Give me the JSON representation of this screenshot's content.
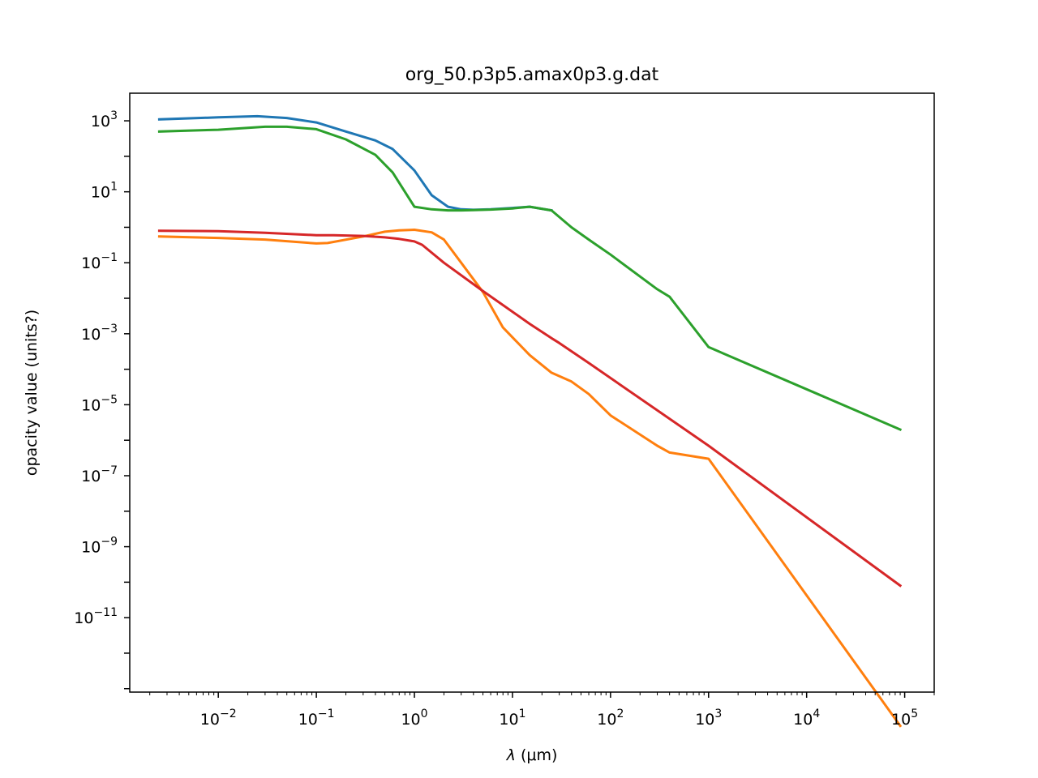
{
  "chart_data": {
    "type": "line",
    "title": "org_50.p3p5.amax0p3.g.dat",
    "xlabel_symbol": "λ",
    "xlabel_units": "(μm)",
    "ylabel": "opacity value (units?)",
    "xscale": "log",
    "yscale": "log",
    "xlim": [
      0.00125,
      200000
    ],
    "ylim": [
      8e-14,
      6000
    ],
    "grid": false,
    "legend": "none",
    "x_ticks": [
      {
        "value": 0.01,
        "base": "10",
        "exp": "−2"
      },
      {
        "value": 0.1,
        "base": "10",
        "exp": "−1"
      },
      {
        "value": 1,
        "base": "10",
        "exp": "0"
      },
      {
        "value": 10,
        "base": "10",
        "exp": "1"
      },
      {
        "value": 100,
        "base": "10",
        "exp": "2"
      },
      {
        "value": 1000,
        "base": "10",
        "exp": "3"
      },
      {
        "value": 10000,
        "base": "10",
        "exp": "4"
      },
      {
        "value": 100000,
        "base": "10",
        "exp": "5"
      }
    ],
    "y_ticks": [
      {
        "value": 1000.0,
        "base": "10",
        "exp": "3"
      },
      {
        "value": 10.0,
        "base": "10",
        "exp": "1"
      },
      {
        "value": 0.1,
        "base": "10",
        "exp": "−1"
      },
      {
        "value": 0.001,
        "base": "10",
        "exp": "−3"
      },
      {
        "value": 1e-05,
        "base": "10",
        "exp": "−5"
      },
      {
        "value": 1e-07,
        "base": "10",
        "exp": "−7"
      },
      {
        "value": 1e-09,
        "base": "10",
        "exp": "−9"
      },
      {
        "value": 1e-11,
        "base": "10",
        "exp": "−11"
      }
    ],
    "series": [
      {
        "color": "#1f77b4",
        "x": [
          0.0025,
          0.01,
          0.025,
          0.05,
          0.1,
          0.2,
          0.4,
          0.6,
          1.0,
          1.5,
          2.2,
          3,
          4,
          6,
          10,
          15,
          25
        ],
        "y": [
          1100,
          1250,
          1350,
          1200,
          900,
          500,
          280,
          160,
          40,
          8,
          3.8,
          3.2,
          3.1,
          3.2,
          3.5,
          3.8,
          3.0
        ]
      },
      {
        "color": "#ff7f0e",
        "x": [
          0.0025,
          0.01,
          0.03,
          0.1,
          0.13,
          0.3,
          0.5,
          0.7,
          1.0,
          1.5,
          2.0,
          3.0,
          5.0,
          8.0,
          15,
          25,
          40,
          60,
          100,
          300,
          400,
          1000,
          90000
        ],
        "y": [
          0.55,
          0.5,
          0.45,
          0.35,
          0.36,
          0.55,
          0.75,
          0.82,
          0.85,
          0.72,
          0.45,
          0.1,
          0.015,
          0.0015,
          0.00025,
          8e-05,
          4.5e-05,
          2e-05,
          5e-06,
          7e-07,
          4.5e-07,
          3e-07,
          9e-15
        ]
      },
      {
        "color": "#2ca02c",
        "x": [
          0.0025,
          0.01,
          0.03,
          0.05,
          0.1,
          0.2,
          0.4,
          0.6,
          1.0,
          1.5,
          2.2,
          3,
          4,
          6,
          10,
          15,
          25,
          40,
          60,
          100,
          300,
          400,
          1000,
          90000
        ],
        "y": [
          500,
          560,
          680,
          680,
          580,
          300,
          110,
          35,
          3.8,
          3.2,
          3.0,
          3.0,
          3.05,
          3.15,
          3.4,
          3.8,
          3.0,
          1.0,
          0.45,
          0.17,
          0.018,
          0.011,
          0.00042,
          2e-06
        ]
      },
      {
        "color": "#d62728",
        "x": [
          0.0025,
          0.01,
          0.03,
          0.1,
          0.15,
          0.3,
          0.5,
          0.7,
          1.0,
          1.2,
          2.0,
          5.0,
          15,
          25,
          30,
          60,
          1000,
          90000
        ],
        "y": [
          0.8,
          0.78,
          0.7,
          0.6,
          0.6,
          0.57,
          0.52,
          0.47,
          0.4,
          0.32,
          0.1,
          0.016,
          0.0019,
          0.00075,
          0.00055,
          0.00015,
          7e-07,
          8e-11
        ]
      }
    ]
  }
}
